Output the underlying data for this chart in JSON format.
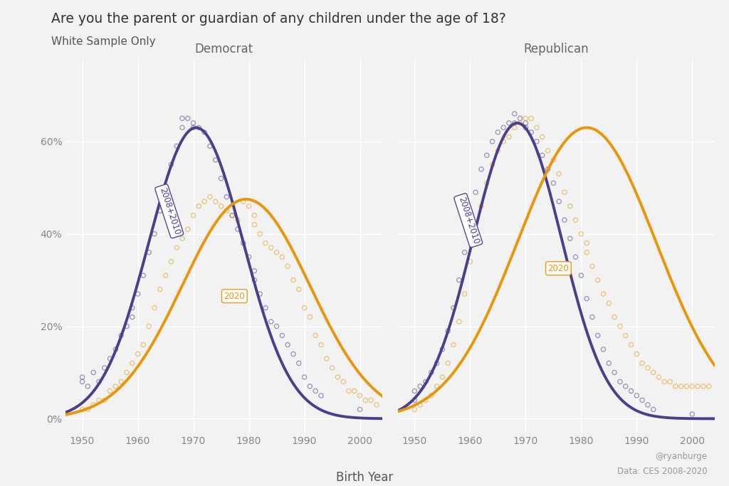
{
  "title": "Are you the parent or guardian of any children under the age of 18?",
  "subtitle": "White Sample Only",
  "xlabel": "Birth Year",
  "panel_labels": [
    "Democrat",
    "Republican"
  ],
  "purple": "#4B3F8C",
  "orange": "#E8960C",
  "background": "#F2F2F2",
  "grid_color": "#FFFFFF",
  "annotation_2008": "2008+2010",
  "annotation_2020": "2020",
  "attr1": "@ryanburge",
  "attr2": "Data: CES 2008-2020",
  "yticks": [
    0.0,
    0.2,
    0.4,
    0.6
  ],
  "ylim": [
    -0.03,
    0.78
  ],
  "xlim": [
    1947,
    2004
  ],
  "xticks": [
    1950,
    1960,
    1970,
    1980,
    1990,
    2000
  ],
  "dem_08_mu": 1970.5,
  "dem_08_sigma": 8.5,
  "dem_08_amp": 0.63,
  "dem_20_mu": 1979.5,
  "dem_20_sigma": 11.5,
  "dem_20_amp": 0.475,
  "rep_08_mu": 1968.5,
  "rep_08_sigma": 8.0,
  "rep_08_amp": 0.64,
  "rep_20_mu": 1981.0,
  "rep_20_sigma": 12.5,
  "rep_20_amp": 0.63
}
